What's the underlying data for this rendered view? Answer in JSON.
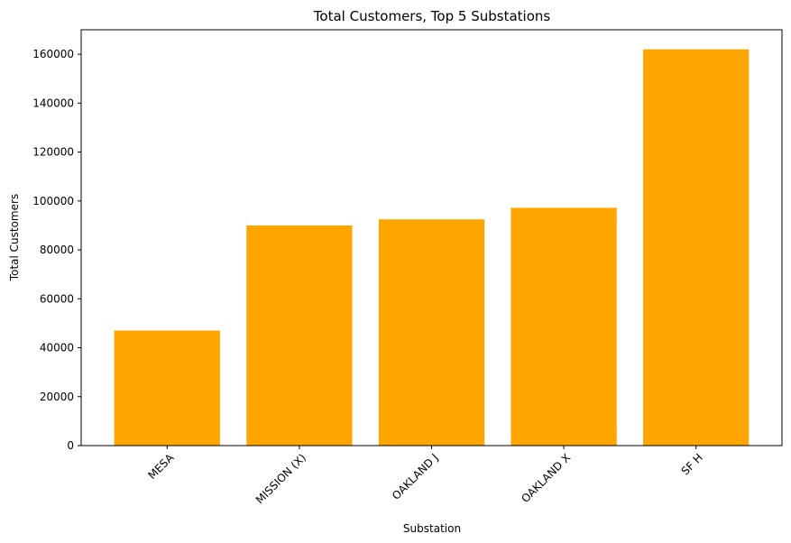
{
  "chart_data": {
    "type": "bar",
    "title": "Total Customers, Top 5 Substations",
    "xlabel": "Substation",
    "ylabel": "Total Customers",
    "categories": [
      "MESA",
      "MISSION (X)",
      "OAKLAND J",
      "OAKLAND X",
      "SF H"
    ],
    "values": [
      47000,
      90000,
      92500,
      97200,
      162000
    ],
    "ylim": [
      0,
      170000
    ],
    "yticks": [
      0,
      20000,
      40000,
      60000,
      80000,
      100000,
      120000,
      140000,
      160000
    ],
    "grid": false,
    "bar_color": "#ffa500"
  }
}
